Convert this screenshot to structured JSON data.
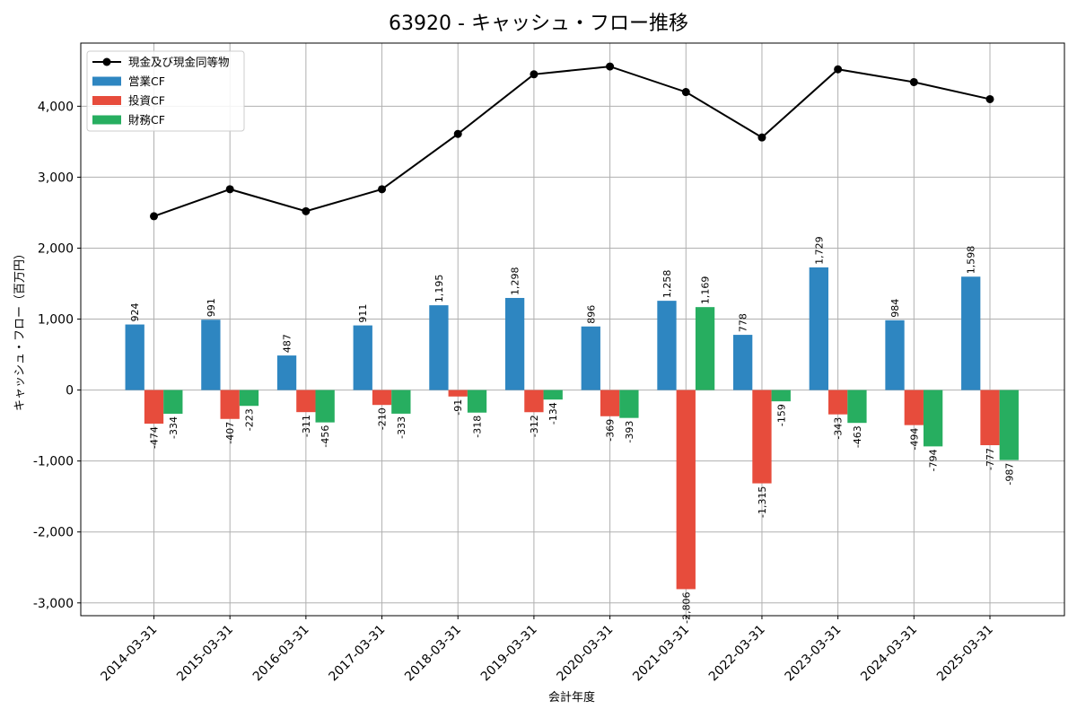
{
  "chart_data": {
    "type": "bar",
    "title": "63920 - キャッシュ・フロー推移",
    "xlabel": "会計年度",
    "ylabel": "キャッシュ・フロー（百万円）",
    "ylim": [
      -3180,
      4890
    ],
    "yticks": [
      -3000,
      -2000,
      -1000,
      0,
      1000,
      2000,
      3000,
      4000
    ],
    "ytick_labels": [
      "-3,000",
      "-2,000",
      "-1,000",
      "0",
      "1,000",
      "2,000",
      "3,000",
      "4,000"
    ],
    "grid": true,
    "legend_position": "top-left",
    "categories": [
      "2014-03-31",
      "2015-03-31",
      "2016-03-31",
      "2017-03-31",
      "2018-03-31",
      "2019-03-31",
      "2020-03-31",
      "2021-03-31",
      "2022-03-31",
      "2023-03-31",
      "2024-03-31",
      "2025-03-31"
    ],
    "series": [
      {
        "name": "営業CF",
        "kind": "bar",
        "color": "#2e86c1",
        "values": [
          924,
          991,
          487,
          911,
          1195,
          1298,
          896,
          1258,
          778,
          1729,
          984,
          1598
        ],
        "labels": [
          "924",
          "991",
          "487",
          "911",
          "1,195",
          "1,298",
          "896",
          "1,258",
          "778",
          "1,729",
          "984",
          "1,598"
        ]
      },
      {
        "name": "投資CF",
        "kind": "bar",
        "color": "#e74c3c",
        "values": [
          -474,
          -407,
          -311,
          -210,
          -91,
          -312,
          -369,
          -2806,
          -1315,
          -343,
          -494,
          -777
        ],
        "labels": [
          "-474",
          "-407",
          "-311",
          "-210",
          "-91",
          "-312",
          "-369",
          "-2,806",
          "-1,315",
          "-343",
          "-494",
          "-777"
        ]
      },
      {
        "name": "財務CF",
        "kind": "bar",
        "color": "#27ae60",
        "values": [
          -334,
          -223,
          -456,
          -333,
          -318,
          -134,
          -393,
          1169,
          -159,
          -463,
          -794,
          -987
        ],
        "labels": [
          "-334",
          "-223",
          "-456",
          "-333",
          "-318",
          "-134",
          "-393",
          "1,169",
          "-159",
          "-463",
          "-794",
          "-987"
        ]
      },
      {
        "name": "現金及び現金同等物",
        "kind": "line",
        "color": "#000000",
        "values": [
          2450,
          2830,
          2520,
          2830,
          3610,
          4450,
          4560,
          4200,
          3560,
          4520,
          4340,
          4100
        ]
      }
    ]
  }
}
